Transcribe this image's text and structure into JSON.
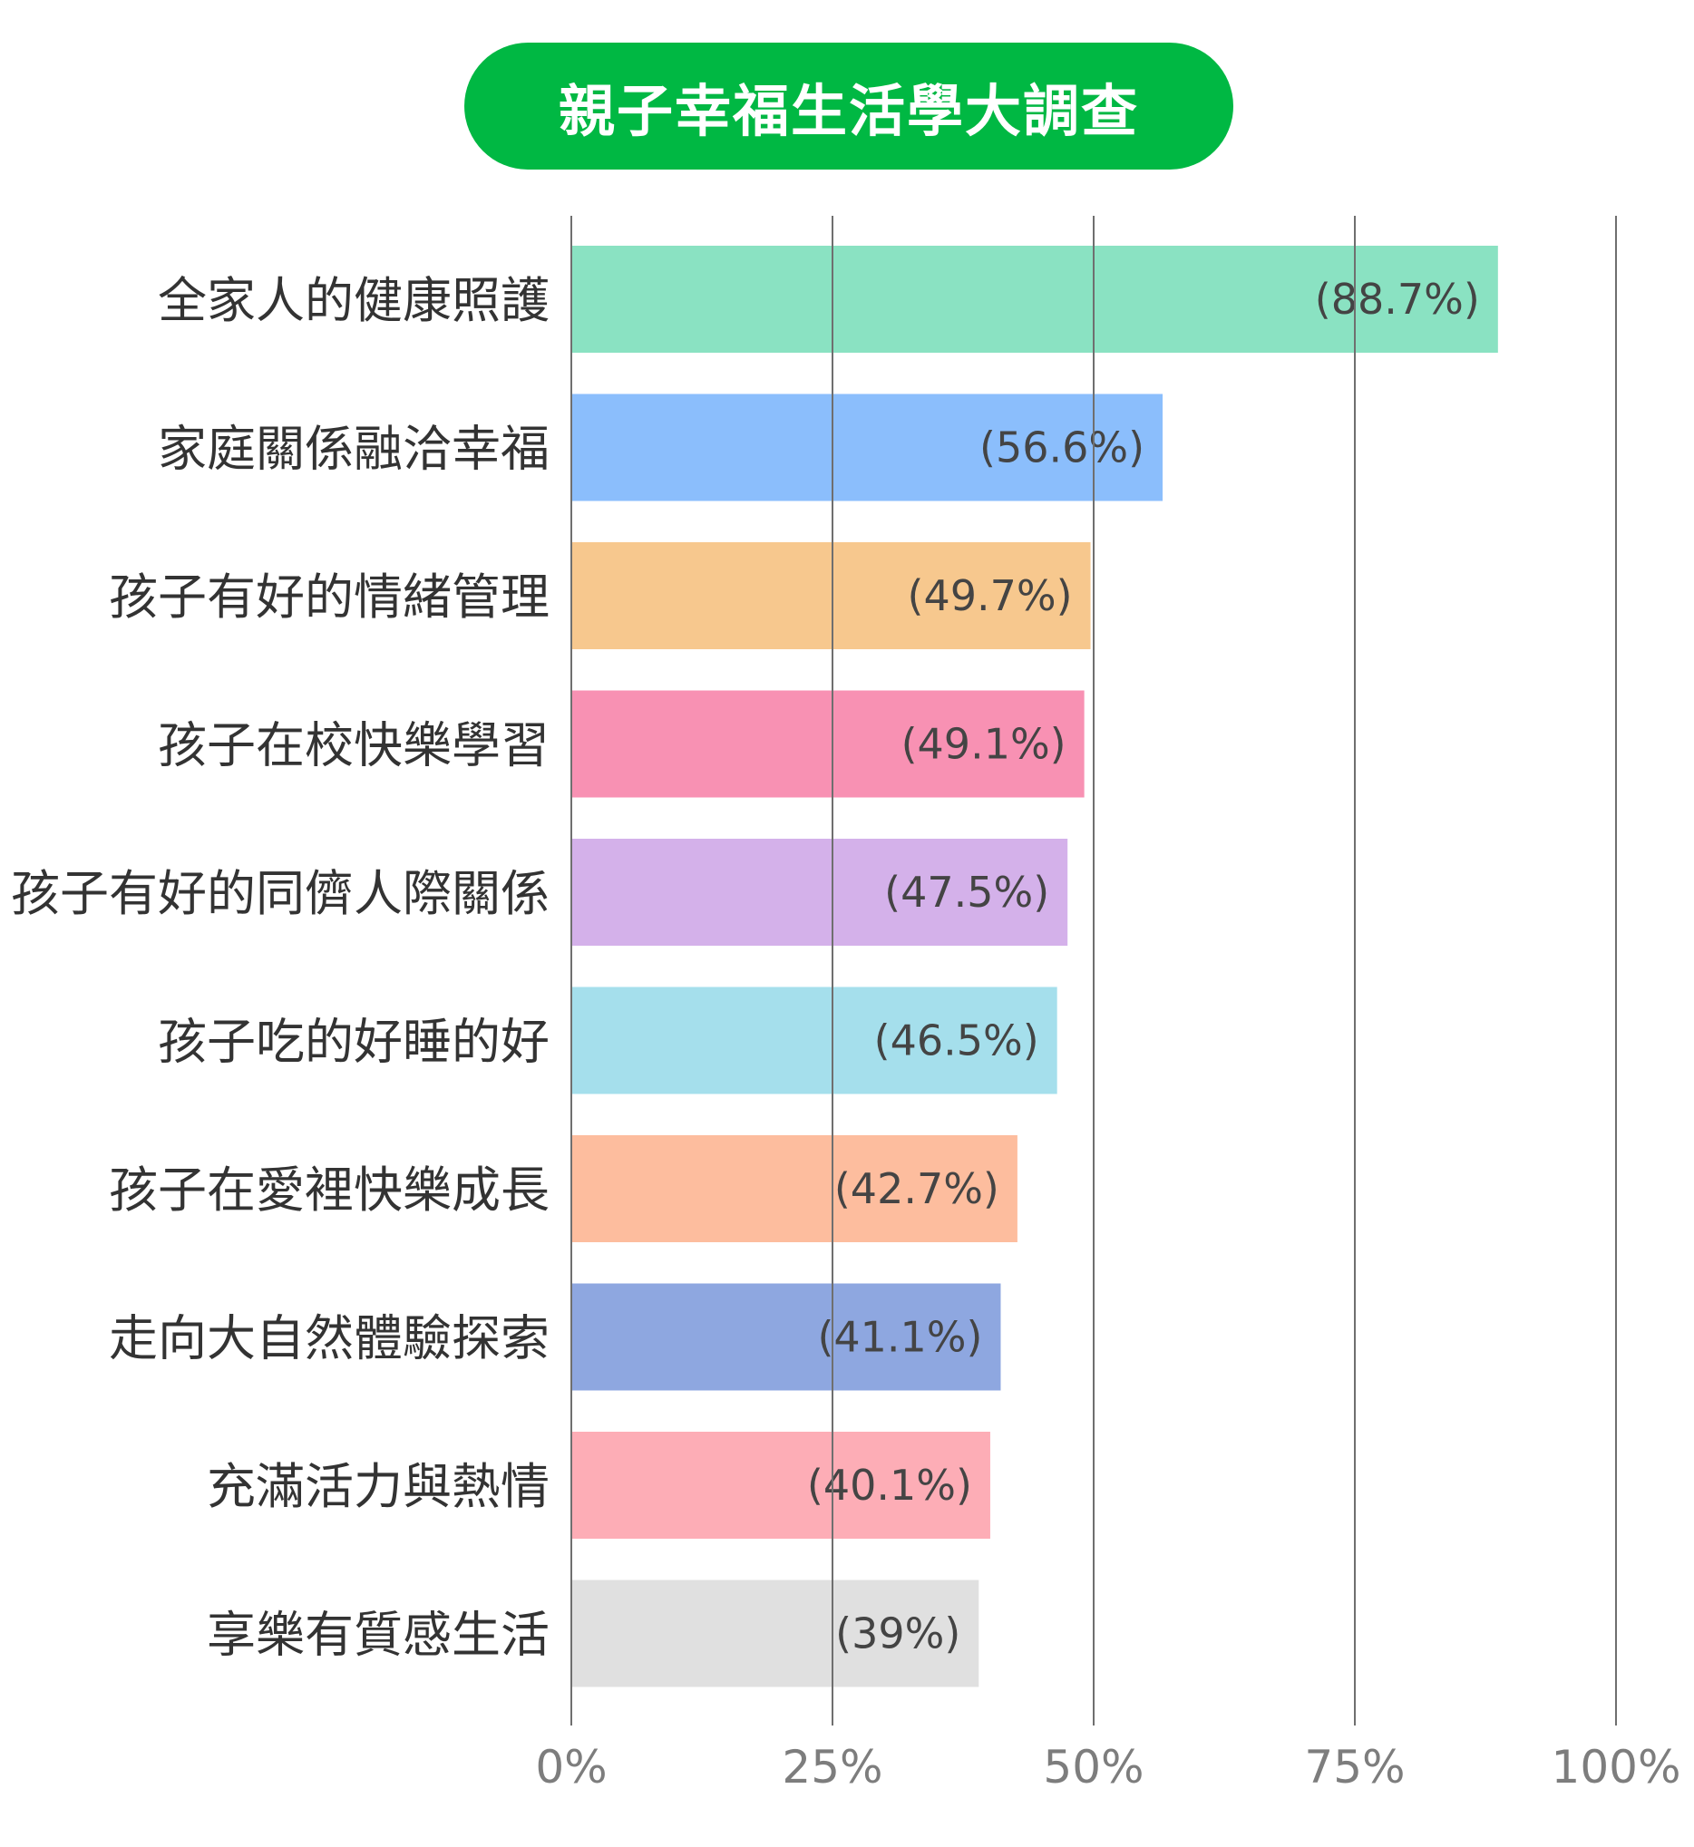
{
  "chart_data": {
    "type": "bar",
    "orientation": "horizontal",
    "title": "親子幸福生活學大調查",
    "title_color": "#00b843",
    "xlim": [
      0,
      100
    ],
    "x_ticks": [
      "0%",
      "25%",
      "50%",
      "75%",
      "100%"
    ],
    "x_tick_values": [
      0,
      25,
      50,
      75,
      100
    ],
    "grid": true,
    "legend": "none",
    "categories": [
      "全家人的健康照護",
      "家庭關係融洽幸福",
      "孩子有好的情緒管理",
      "孩子在校快樂學習",
      "孩子有好的同儕人際關係",
      "孩子吃的好睡的好",
      "孩子在愛裡快樂成長",
      "走向大自然體驗探索",
      "充滿活力與熱情",
      "享樂有質感生活"
    ],
    "values": [
      88.7,
      56.6,
      49.7,
      49.1,
      47.5,
      46.5,
      42.7,
      41.1,
      40.1,
      39
    ],
    "data_labels": [
      "(88.7%)",
      "(56.6%)",
      "(49.7%)",
      "(49.1%)",
      "(47.5%)",
      "(46.5%)",
      "(42.7%)",
      "(41.1%)",
      "(40.1%)",
      "(39%)"
    ],
    "colors": [
      "#8ae2c2",
      "#8bbefc",
      "#f7c88e",
      "#f891b3",
      "#d4b1ea",
      "#a5dfec",
      "#fdbd9e",
      "#8ea7e0",
      "#fdadb6",
      "#e0e0e0"
    ]
  }
}
